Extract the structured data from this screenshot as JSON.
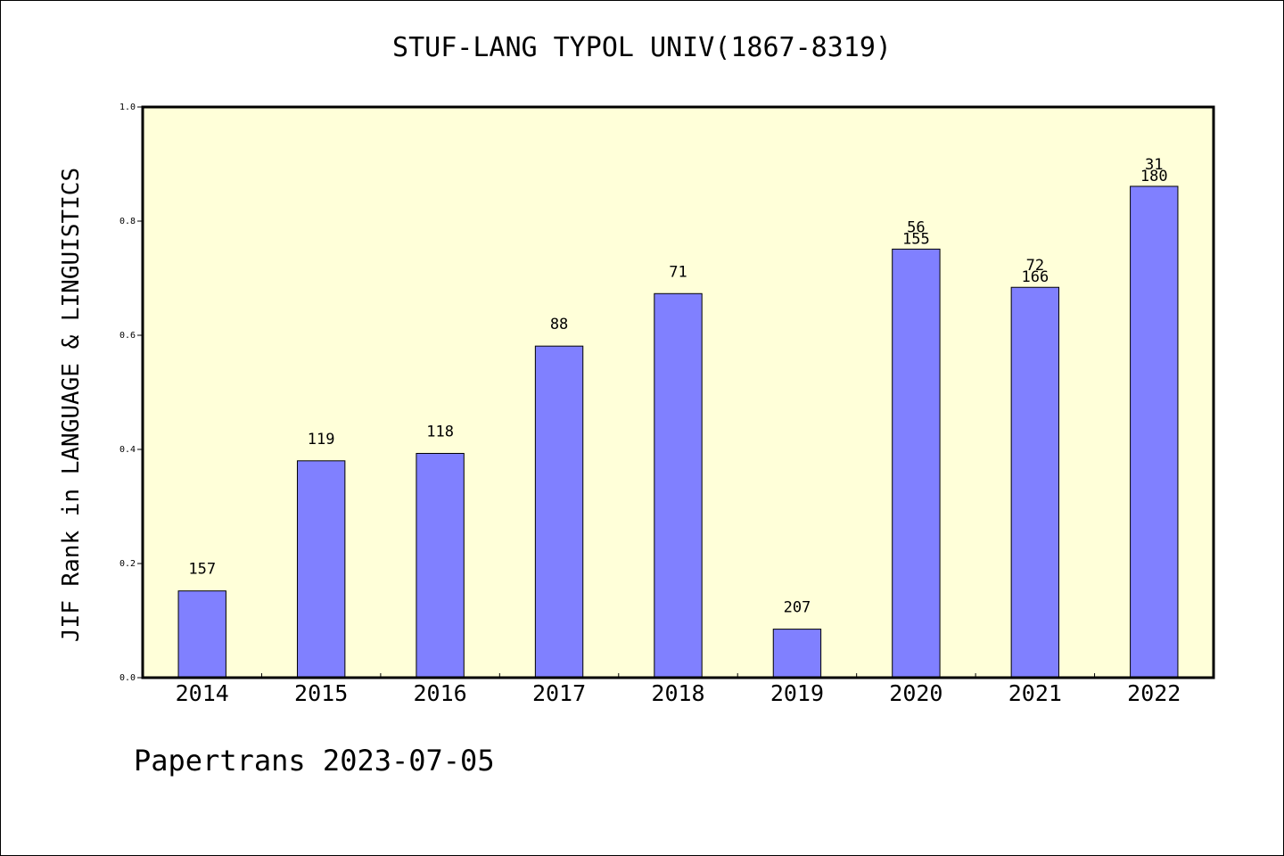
{
  "chart_data": {
    "type": "bar",
    "title": "STUF-LANG TYPOL UNIV(1867-8319)",
    "ylabel": "JIF Rank in LANGUAGE & LINGUISTICS",
    "xlabel": "",
    "categories": [
      "2014",
      "2015",
      "2016",
      "2017",
      "2018",
      "2019",
      "2020",
      "2021",
      "2022"
    ],
    "values": [
      0.152,
      0.38,
      0.393,
      0.581,
      0.673,
      0.085,
      0.751,
      0.684,
      0.861
    ],
    "bar_labels": [
      [
        "157"
      ],
      [
        "119"
      ],
      [
        "118"
      ],
      [
        "88"
      ],
      [
        "71"
      ],
      [
        "207"
      ],
      [
        "56",
        "155"
      ],
      [
        "72",
        "166"
      ],
      [
        "31",
        "180"
      ]
    ],
    "ylim": [
      0.0,
      1.0
    ],
    "yticks": [
      "0.0",
      "0.2",
      "0.4",
      "0.6",
      "0.8",
      "1.0"
    ],
    "ytick_values": [
      0.0,
      0.2,
      0.4,
      0.6,
      0.8,
      1.0
    ],
    "plot_background": "#ffffd9",
    "bar_color": "#8080ff",
    "grid": false
  },
  "footer": {
    "text": "Papertrans 2023-07-05"
  }
}
